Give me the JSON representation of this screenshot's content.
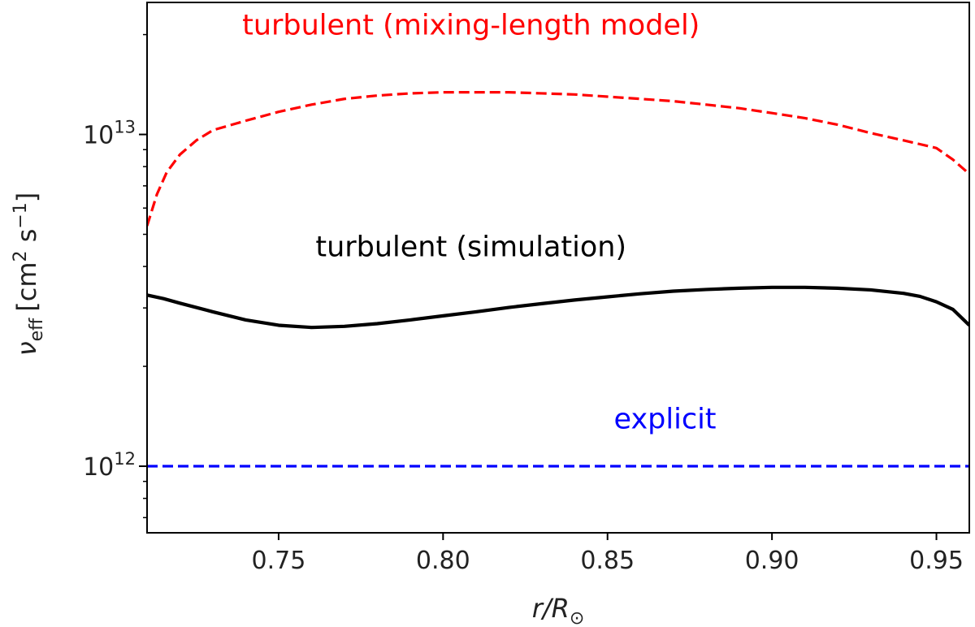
{
  "chart_data": {
    "type": "line",
    "xlabel": "r/R⊙",
    "ylabel": "ν_eff [cm² s⁻¹]",
    "ylabel_main": "ν",
    "ylabel_sub": "eff",
    "ylabel_units_a": "[cm",
    "ylabel_units_sup2": "2",
    "ylabel_units_b": " s",
    "ylabel_units_sup_neg1": "−1",
    "ylabel_units_c": "]",
    "xlabel_main": "r/R",
    "xlabel_sub": "⊙",
    "xlim": [
      0.71,
      0.96
    ],
    "ylim": [
      630000000000.0,
      25000000000000.0
    ],
    "y_scale": "log",
    "grid": false,
    "x_ticks": [
      {
        "value": 0.75,
        "label": "0.75"
      },
      {
        "value": 0.8,
        "label": "0.80"
      },
      {
        "value": 0.85,
        "label": "0.85"
      },
      {
        "value": 0.9,
        "label": "0.90"
      },
      {
        "value": 0.95,
        "label": "0.95"
      }
    ],
    "y_ticks_major": [
      {
        "value": 1000000000000.0,
        "base": "10",
        "exp": "12"
      },
      {
        "value": 10000000000000.0,
        "base": "10",
        "exp": "13"
      }
    ],
    "y_ticks_minor": [
      700000000000.0,
      800000000000.0,
      900000000000.0,
      2000000000000.0,
      3000000000000.0,
      4000000000000.0,
      5000000000000.0,
      6000000000000.0,
      7000000000000.0,
      8000000000000.0,
      9000000000000.0,
      20000000000000.0
    ],
    "series": [
      {
        "label": "turbulent (mixing-length model)",
        "color": "#ff0000",
        "dash": "dashed",
        "x": [
          0.71,
          0.713,
          0.716,
          0.72,
          0.725,
          0.73,
          0.74,
          0.75,
          0.76,
          0.77,
          0.78,
          0.79,
          0.8,
          0.81,
          0.82,
          0.83,
          0.84,
          0.85,
          0.86,
          0.87,
          0.88,
          0.89,
          0.9,
          0.91,
          0.92,
          0.93,
          0.94,
          0.95,
          0.955,
          0.96
        ],
        "y": [
          5300000000000.0,
          6600000000000.0,
          7700000000000.0,
          8700000000000.0,
          9600000000000.0,
          10300000000000.0,
          11000000000000.0,
          11700000000000.0,
          12300000000000.0,
          12800000000000.0,
          13100000000000.0,
          13300000000000.0,
          13400000000000.0,
          13400000000000.0,
          13400000000000.0,
          13300000000000.0,
          13200000000000.0,
          13000000000000.0,
          12800000000000.0,
          12600000000000.0,
          12300000000000.0,
          12000000000000.0,
          11600000000000.0,
          11200000000000.0,
          10700000000000.0,
          10100000000000.0,
          9600000000000.0,
          9100000000000.0,
          8400000000000.0,
          7600000000000.0
        ]
      },
      {
        "label": "turbulent (simulation)",
        "color": "#000000",
        "dash": "solid",
        "x": [
          0.71,
          0.715,
          0.72,
          0.73,
          0.74,
          0.75,
          0.76,
          0.77,
          0.78,
          0.79,
          0.8,
          0.81,
          0.82,
          0.83,
          0.84,
          0.85,
          0.86,
          0.87,
          0.88,
          0.89,
          0.9,
          0.91,
          0.92,
          0.93,
          0.94,
          0.945,
          0.95,
          0.955,
          0.96
        ],
        "y": [
          3280000000000.0,
          3200000000000.0,
          3100000000000.0,
          2920000000000.0,
          2760000000000.0,
          2660000000000.0,
          2620000000000.0,
          2640000000000.0,
          2690000000000.0,
          2760000000000.0,
          2840000000000.0,
          2920000000000.0,
          3010000000000.0,
          3090000000000.0,
          3170000000000.0,
          3240000000000.0,
          3310000000000.0,
          3370000000000.0,
          3410000000000.0,
          3440000000000.0,
          3460000000000.0,
          3460000000000.0,
          3440000000000.0,
          3400000000000.0,
          3320000000000.0,
          3250000000000.0,
          3130000000000.0,
          2970000000000.0,
          2660000000000.0
        ]
      },
      {
        "label": "explicit",
        "color": "#0000ff",
        "dash": "dashed",
        "x": [
          0.71,
          0.96
        ],
        "y": [
          1000000000000.0,
          1000000000000.0
        ]
      }
    ]
  }
}
